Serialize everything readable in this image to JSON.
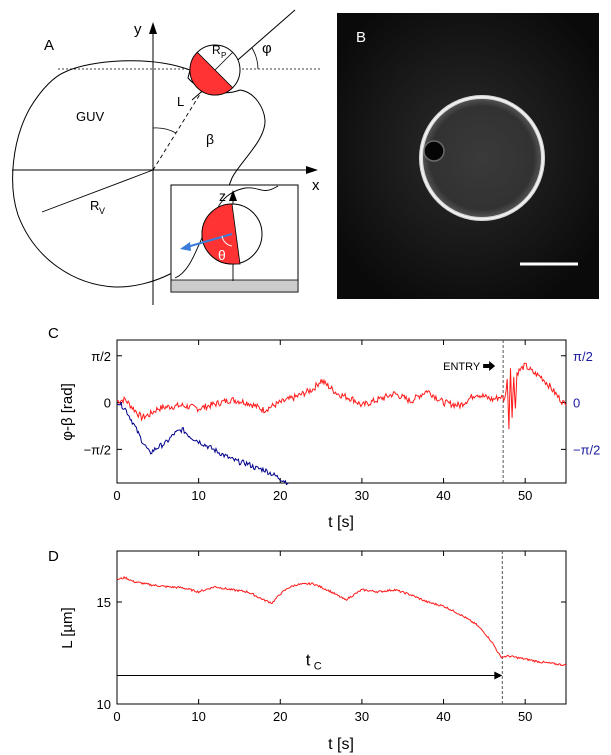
{
  "panel_a": {
    "label": "A",
    "axis_y": "y",
    "axis_x": "x",
    "vesicle": "GUV",
    "length": "L",
    "angle_beta": "β",
    "angle_phi": "φ",
    "radius_v": "R",
    "radius_v_sub": "V",
    "radius_p": "R",
    "radius_p_sub": "P",
    "inset_axis_z": "z",
    "inset_angle": "θ"
  },
  "panel_b": {
    "label": "B"
  },
  "chart_data": [
    {
      "panel": "C",
      "type": "line",
      "xlabel": "t [s]",
      "ylabel": "φ-β [rad]",
      "xlim": [
        0,
        55
      ],
      "ylim": [
        -2.7,
        2.1
      ],
      "xticks": [
        0,
        10,
        20,
        30,
        40,
        50
      ],
      "yticks_left": [
        "π/2",
        "0",
        "−π/2"
      ],
      "yticks_right": [
        "π/2",
        "0",
        "−π/2"
      ],
      "annotation": "ENTRY",
      "event_t": 47.3,
      "series": [
        {
          "color": "#ff1a1a",
          "x": [
            0,
            1,
            2,
            3,
            4,
            5,
            6,
            8,
            10,
            12,
            14,
            16,
            18,
            20,
            22,
            24,
            25,
            27,
            29,
            30,
            32,
            34,
            36,
            38,
            40,
            42,
            44,
            46,
            47,
            47.5,
            47.8,
            48.0,
            48.2,
            48.4,
            48.6,
            48.8,
            49,
            50,
            51,
            52,
            53,
            54,
            55
          ],
          "y": [
            0.05,
            0.1,
            -0.2,
            -0.5,
            -0.4,
            -0.2,
            -0.15,
            -0.1,
            -0.2,
            -0.05,
            0.1,
            0.0,
            -0.25,
            0.0,
            0.2,
            0.45,
            0.75,
            0.3,
            0.1,
            -0.1,
            0.1,
            0.3,
            0.05,
            0.4,
            0.0,
            -0.1,
            0.3,
            0.1,
            0.2,
            0.1,
            0.8,
            -0.8,
            1.2,
            -0.5,
            0.9,
            -0.2,
            1.0,
            1.25,
            1.0,
            0.85,
            0.55,
            0.2,
            -0.1
          ]
        },
        {
          "color": "#00008b",
          "x": [
            0,
            1,
            2,
            3,
            4,
            5,
            6,
            7,
            8,
            9,
            10,
            11,
            12,
            13,
            14,
            15,
            16,
            17,
            18,
            19,
            20,
            21
          ],
          "y": [
            0.05,
            -0.2,
            -0.7,
            -1.25,
            -1.7,
            -1.5,
            -1.35,
            -1.05,
            -0.9,
            -1.15,
            -1.3,
            -1.45,
            -1.6,
            -1.75,
            -1.9,
            -2.0,
            -2.05,
            -2.2,
            -2.25,
            -2.4,
            -2.55,
            -2.7
          ]
        }
      ]
    },
    {
      "panel": "D",
      "type": "line",
      "xlabel": "t [s]",
      "ylabel": "L [µm]",
      "xlim": [
        0,
        55
      ],
      "ylim": [
        10,
        17.5
      ],
      "xticks": [
        0,
        10,
        20,
        30,
        40,
        50
      ],
      "yticks": [
        10,
        15
      ],
      "annotation": "t",
      "annotation_sub": "C",
      "event_t": 47.2,
      "series": [
        {
          "color": "#ff1a1a",
          "x": [
            0,
            1,
            2,
            4,
            6,
            8,
            10,
            12,
            14,
            16,
            18,
            19,
            20,
            21,
            22,
            24,
            26,
            28,
            30,
            32,
            34,
            36,
            38,
            40,
            42,
            44,
            45,
            46,
            47,
            48,
            50,
            52,
            54,
            55
          ],
          "y": [
            16.1,
            16.2,
            16.0,
            15.85,
            15.75,
            15.7,
            15.5,
            15.75,
            15.6,
            15.5,
            15.1,
            14.95,
            15.4,
            15.7,
            15.85,
            15.9,
            15.55,
            15.1,
            15.6,
            15.5,
            15.6,
            15.35,
            15.0,
            14.8,
            14.4,
            13.9,
            13.5,
            13.0,
            12.3,
            12.35,
            12.2,
            12.05,
            11.95,
            11.9
          ]
        }
      ]
    }
  ]
}
